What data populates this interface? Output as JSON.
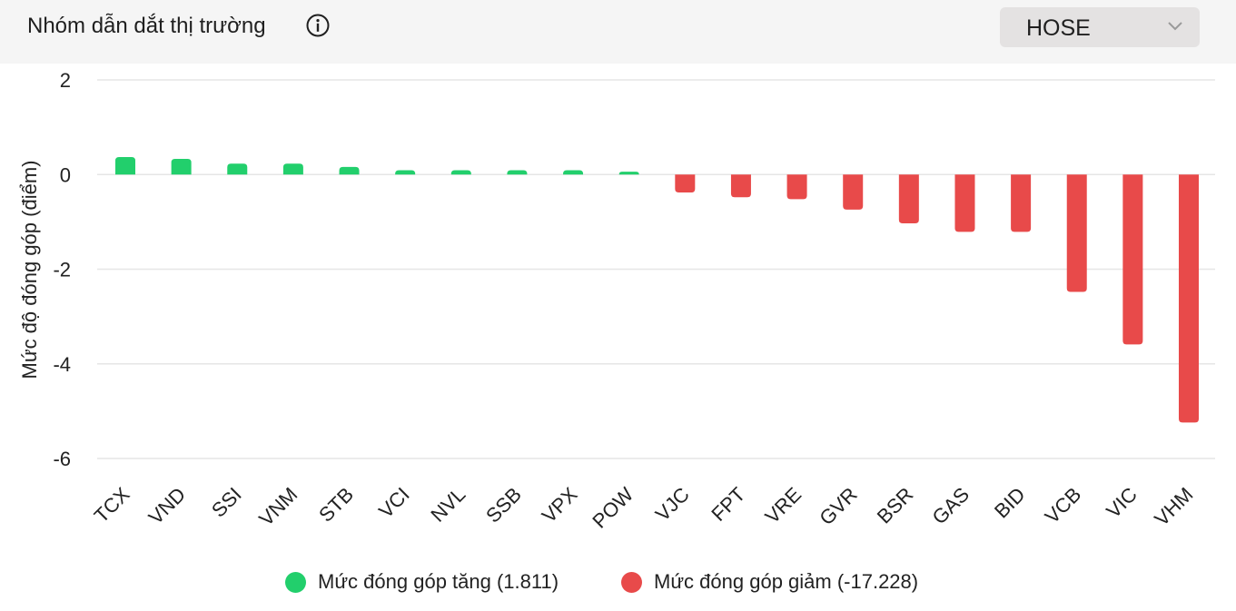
{
  "header": {
    "title": "Nhóm dẫn dắt thị trường",
    "info_icon": "info-circle-icon",
    "exchange_select": {
      "value": "HOSE",
      "icon": "chevron-down-icon"
    }
  },
  "colors": {
    "increase": "#22cf6c",
    "decrease": "#e84a4a",
    "grid": "#e6e6e6",
    "header_bg": "#f5f5f5",
    "select_bg": "#e4e2e2"
  },
  "chart_data": {
    "type": "bar",
    "ylabel": "Mức độ đóng góp (điểm)",
    "ylim": [
      -6,
      2
    ],
    "yticks": [
      "2",
      "0",
      "-2",
      "-4",
      "-6"
    ],
    "ytick_values": [
      2,
      0,
      -2,
      -4,
      -6
    ],
    "grid": true,
    "categories": [
      "TCX",
      "VND",
      "SSI",
      "VNM",
      "STB",
      "VCI",
      "NVL",
      "SSB",
      "VPX",
      "POW",
      "VJC",
      "FPT",
      "VRE",
      "GVR",
      "BSR",
      "GAS",
      "BID",
      "VCB",
      "VIC",
      "VHM"
    ],
    "values": [
      0.37,
      0.33,
      0.23,
      0.23,
      0.16,
      0.09,
      0.09,
      0.09,
      0.09,
      0.06,
      -0.38,
      -0.48,
      -0.52,
      -0.74,
      -1.03,
      -1.21,
      -1.21,
      -2.48,
      -3.59,
      -5.24
    ],
    "legend": {
      "position": "bottom-center",
      "items": [
        {
          "label": "Mức đóng góp tăng (1.811)",
          "color": "#22cf6c"
        },
        {
          "label": "Mức đóng góp giảm (-17.228)",
          "color": "#e84a4a"
        }
      ]
    }
  }
}
